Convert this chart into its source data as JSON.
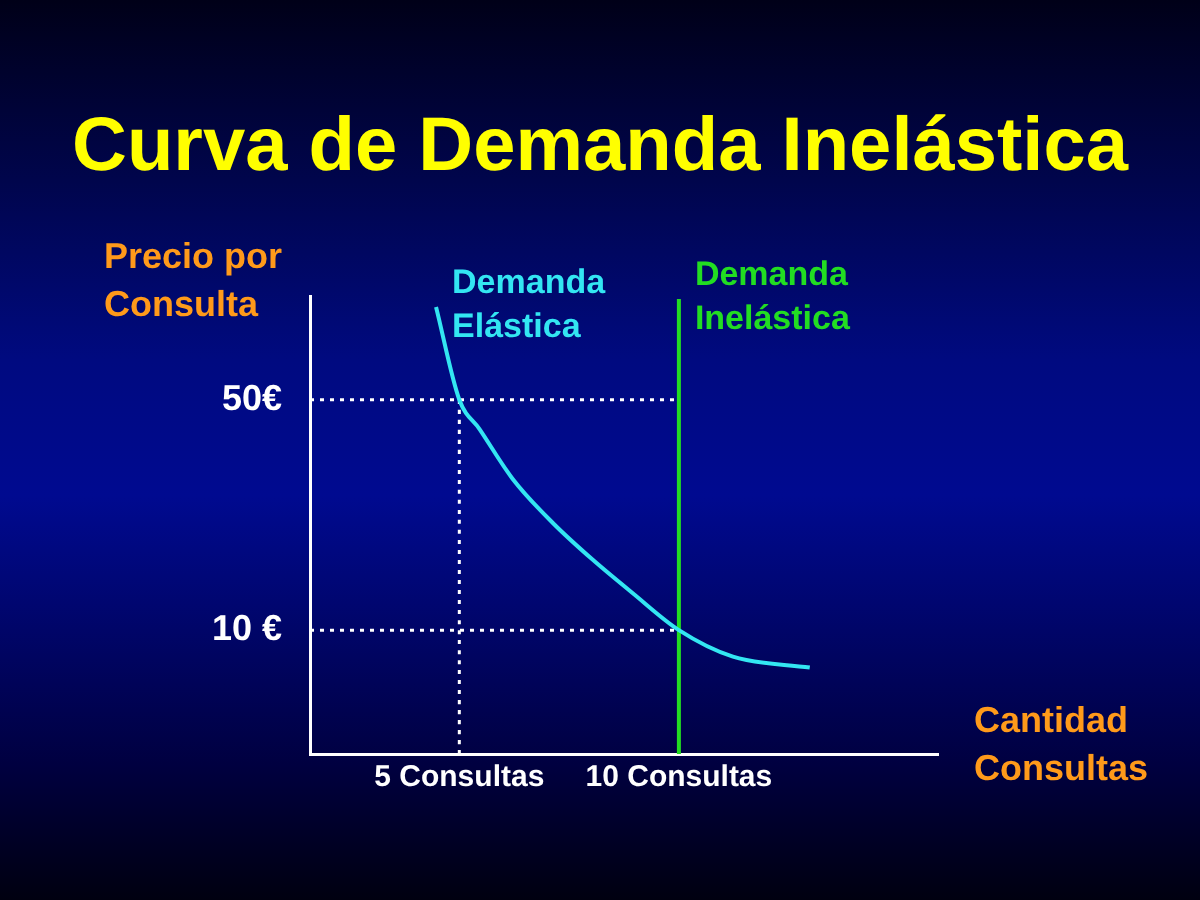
{
  "chart_data": {
    "type": "line",
    "title": "Curva de Demanda Inelástica",
    "ylabel": "Precio por Consulta",
    "xlabel": "Cantidad Consultas",
    "xlim": [
      1.6,
      15.9
    ],
    "ylim": [
      -11.5,
      68
    ],
    "xticks": [
      {
        "value": 5,
        "label": "5 Consultas"
      },
      {
        "value": 10,
        "label": "10 Consultas"
      }
    ],
    "yticks": [
      {
        "value": 10,
        "label": "10 €"
      },
      {
        "value": 50,
        "label": "50€"
      }
    ],
    "legend": false,
    "marker": "none",
    "series": [
      {
        "name": "Demanda Elástica",
        "color": "#33e6f2",
        "x": [
          4.47,
          5,
          5.46,
          6.22,
          7.13,
          8.04,
          8.95,
          10,
          11.23,
          12.98
        ],
        "values": [
          66.1,
          50,
          44.9,
          36.2,
          28.6,
          22.2,
          16.4,
          10,
          5.4,
          3.5
        ]
      },
      {
        "name": "Demanda Inelástica",
        "color": "#22dd22",
        "x": [
          10,
          10
        ],
        "values": [
          -11.5,
          67.5
        ]
      },
      {
        "color": "#ffffff",
        "line_style": "dotted",
        "x": [
          1.6,
          10
        ],
        "values": [
          50,
          50
        ]
      },
      {
        "color": "#ffffff",
        "line_style": "dotted",
        "x": [
          1.6,
          10
        ],
        "values": [
          10,
          10
        ]
      },
      {
        "color": "#ffffff",
        "line_style": "dotted",
        "x": [
          5,
          5
        ],
        "values": [
          -11.5,
          50
        ]
      }
    ]
  }
}
